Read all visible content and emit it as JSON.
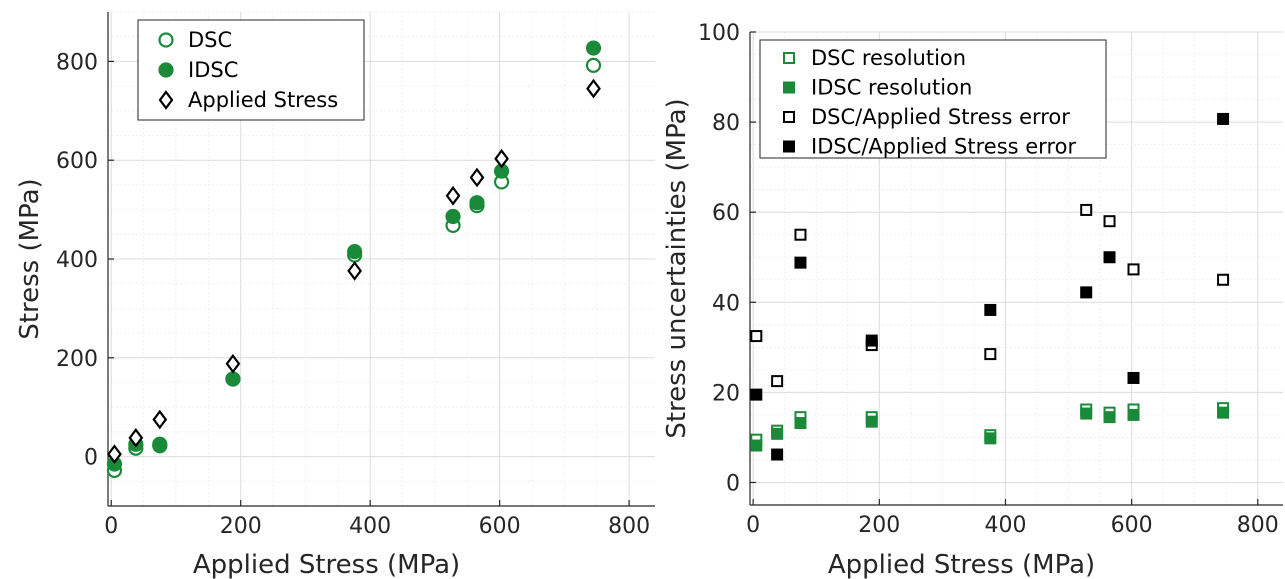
{
  "colors": {
    "green": "#1a8a3a",
    "black": "#000000",
    "axis": "#262626"
  },
  "chart_data": [
    {
      "type": "scatter",
      "xlabel": "Applied Stress (MPa)",
      "ylabel": "Stress (MPa)",
      "xlim": [
        -5,
        840
      ],
      "ylim": [
        -100,
        900
      ],
      "xticks": [
        0,
        200,
        400,
        600,
        800
      ],
      "yticks": [
        0,
        200,
        400,
        600,
        800
      ],
      "grid": true,
      "legend_position": "top-left",
      "series": [
        {
          "name": "DSC",
          "marker": "circle-open",
          "color": "#1a8a3a",
          "x": [
            5,
            38,
            75,
            188,
            376,
            528,
            565,
            603,
            745
          ],
          "y": [
            -28,
            17,
            25,
            157,
            408,
            468,
            508,
            556,
            792
          ]
        },
        {
          "name": "IDSC",
          "marker": "circle-filled",
          "color": "#1a8a3a",
          "x": [
            5,
            38,
            75,
            188,
            376,
            528,
            565,
            603,
            745
          ],
          "y": [
            -15,
            25,
            22,
            157,
            415,
            486,
            514,
            578,
            827
          ]
        },
        {
          "name": "Applied Stress",
          "marker": "diamond-open",
          "color": "#000000",
          "x": [
            5,
            38,
            75,
            188,
            376,
            528,
            565,
            603,
            745
          ],
          "y": [
            5,
            38,
            75,
            188,
            376,
            528,
            565,
            603,
            745
          ]
        }
      ]
    },
    {
      "type": "scatter",
      "xlabel": "Applied Stress (MPa)",
      "ylabel": "Stress uncertainties (MPa)",
      "xlim": [
        -5,
        840
      ],
      "ylim": [
        -5,
        100
      ],
      "xticks": [
        0,
        200,
        400,
        600,
        800
      ],
      "yticks": [
        0,
        20,
        40,
        60,
        80,
        100
      ],
      "grid": true,
      "legend_position": "top-left",
      "series": [
        {
          "name": "DSC resolution",
          "marker": "square-open",
          "color": "#1a8a3a",
          "x": [
            5,
            38,
            75,
            188,
            376,
            528,
            565,
            603,
            745
          ],
          "y": [
            9.5,
            11.5,
            14.5,
            14.5,
            10.5,
            16.2,
            15.5,
            16.2,
            16.5
          ]
        },
        {
          "name": "IDSC resolution",
          "marker": "square-filled",
          "color": "#1a8a3a",
          "x": [
            5,
            38,
            75,
            188,
            376,
            528,
            565,
            603,
            745
          ],
          "y": [
            8.2,
            10.8,
            13.2,
            13.5,
            9.8,
            15.3,
            14.5,
            15.0,
            15.5
          ]
        },
        {
          "name": "DSC/Applied Stress error",
          "marker": "square-open",
          "color": "#000000",
          "x": [
            5,
            38,
            75,
            188,
            376,
            528,
            565,
            603,
            745
          ],
          "y": [
            32.5,
            22.5,
            55.0,
            30.5,
            28.5,
            60.5,
            58.0,
            47.3,
            45.0
          ]
        },
        {
          "name": "IDSC/Applied Stress error",
          "marker": "square-filled",
          "color": "#000000",
          "x": [
            5,
            38,
            75,
            188,
            376,
            528,
            565,
            603,
            745
          ],
          "y": [
            19.5,
            6.2,
            48.8,
            31.5,
            38.3,
            42.2,
            50.0,
            23.2,
            80.7
          ]
        }
      ]
    }
  ]
}
